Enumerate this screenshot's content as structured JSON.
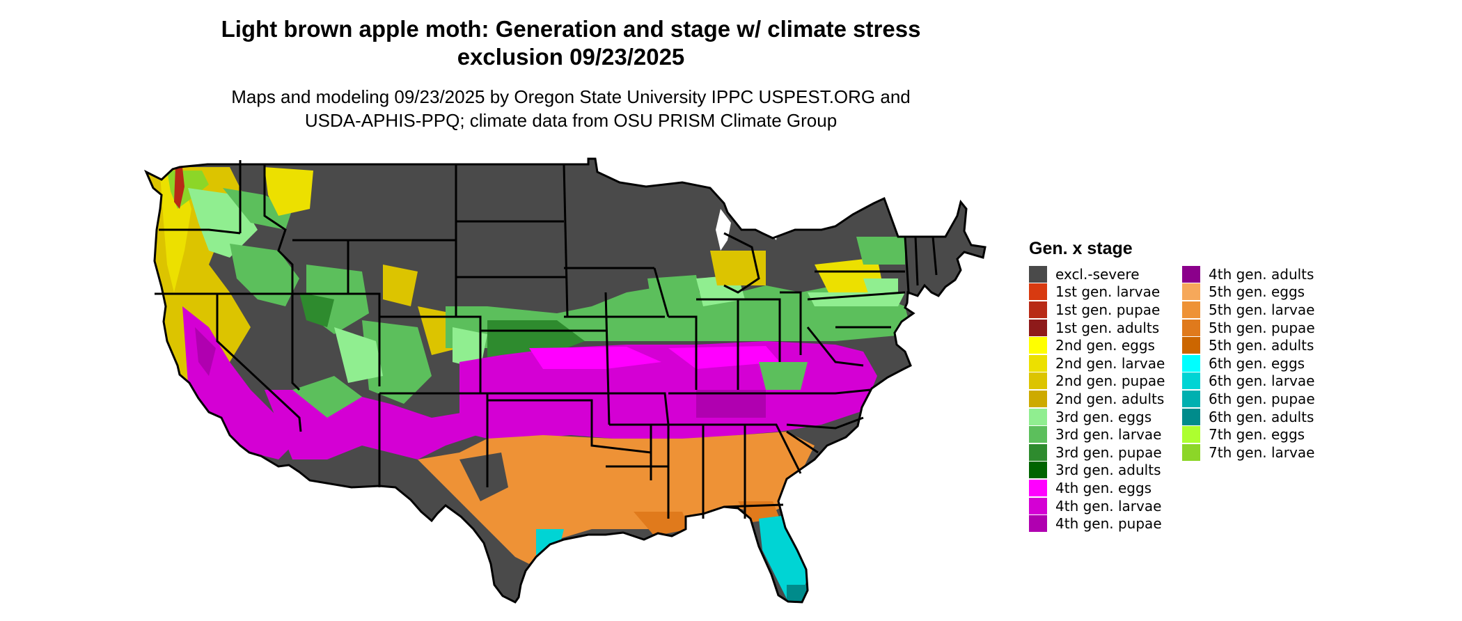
{
  "title_line1": "Light brown apple moth: Generation and stage w/ climate stress",
  "title_line2": "exclusion 09/23/2025",
  "subtitle_line1": "Maps and modeling 09/23/2025 by Oregon State University IPPC USPEST.ORG and",
  "subtitle_line2": "USDA-APHIS-PPQ; climate data from OSU PRISM Climate Group",
  "legend": {
    "title": "Gen. x stage",
    "items": [
      {
        "label": "excl.-severe",
        "color": "#4a4a4a"
      },
      {
        "label": "1st gen. larvae",
        "color": "#d83a10"
      },
      {
        "label": "1st gen. pupae",
        "color": "#b82a16"
      },
      {
        "label": "1st gen. adults",
        "color": "#8e1a1a"
      },
      {
        "label": "2nd gen. eggs",
        "color": "#ffff00"
      },
      {
        "label": "2nd gen. larvae",
        "color": "#ece000"
      },
      {
        "label": "2nd gen. pupae",
        "color": "#dcc400"
      },
      {
        "label": "2nd gen. adults",
        "color": "#cdaa00"
      },
      {
        "label": "3rd gen. eggs",
        "color": "#90ee90"
      },
      {
        "label": "3rd gen. larvae",
        "color": "#5cbf5c"
      },
      {
        "label": "3rd gen. pupae",
        "color": "#2e8b2e"
      },
      {
        "label": "3rd gen. adults",
        "color": "#006400"
      },
      {
        "label": "4th gen. eggs",
        "color": "#ff00ff"
      },
      {
        "label": "4th gen. larvae",
        "color": "#d400d4"
      },
      {
        "label": "4th gen. pupae",
        "color": "#b000b0"
      },
      {
        "label": "4th gen. adults",
        "color": "#8b008b"
      },
      {
        "label": "5th gen. eggs",
        "color": "#f6a85a"
      },
      {
        "label": "5th gen. larvae",
        "color": "#ee9236"
      },
      {
        "label": "5th gen. pupae",
        "color": "#e07a1c"
      },
      {
        "label": "5th gen. adults",
        "color": "#cc6600"
      },
      {
        "label": "6th gen. eggs",
        "color": "#00ffff"
      },
      {
        "label": "6th gen. larvae",
        "color": "#00d4d4"
      },
      {
        "label": "6th gen. pupae",
        "color": "#00b0b0"
      },
      {
        "label": "6th gen. adults",
        "color": "#008b8b"
      },
      {
        "label": "7th gen. eggs",
        "color": "#adff2f"
      },
      {
        "label": "7th gen. larvae",
        "color": "#8cd628"
      }
    ]
  }
}
